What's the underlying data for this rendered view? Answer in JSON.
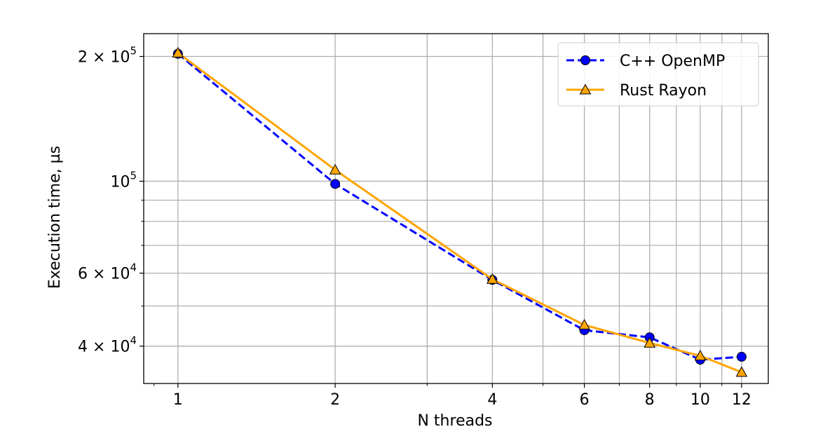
{
  "chart_data": {
    "type": "line",
    "xscale": "log",
    "yscale": "log",
    "xlabel": "N threads",
    "ylabel": "Execution time, µs",
    "xlim": [
      0.86,
      13.5
    ],
    "ylim": [
      32500,
      227000
    ],
    "grid": true,
    "grid_minor": true,
    "legend_position": "top-right",
    "x_ticks": [
      {
        "value": 1,
        "label": "1"
      },
      {
        "value": 2,
        "label": "2"
      },
      {
        "value": 4,
        "label": "4"
      },
      {
        "value": 6,
        "label": "6"
      },
      {
        "value": 8,
        "label": "8"
      },
      {
        "value": 10,
        "label": "10"
      },
      {
        "value": 12,
        "label": "12"
      }
    ],
    "x_minor_ticks": [
      3,
      5,
      7,
      9,
      11
    ],
    "y_ticks": [
      {
        "value": 200000,
        "base": "2 × 10",
        "exp": "5"
      },
      {
        "value": 100000,
        "base": "10",
        "exp": "5"
      },
      {
        "value": 60000,
        "base": "6 × 10",
        "exp": "4"
      },
      {
        "value": 40000,
        "base": "4 × 10",
        "exp": "4"
      }
    ],
    "y_minor_ticks": [
      90000,
      80000,
      70000,
      50000
    ],
    "x": [
      1,
      2,
      4,
      6,
      8,
      10,
      12
    ],
    "series": [
      {
        "name": "C++ OpenMP",
        "values": [
          203000,
          98500,
          57800,
          43700,
          42000,
          37100,
          37700
        ],
        "color": "#0000ff",
        "line_style": "dashed",
        "marker": "circle"
      },
      {
        "name": "Rust Rayon",
        "values": [
          204000,
          106500,
          58000,
          45000,
          40700,
          37900,
          34600
        ],
        "color": "#ffa500",
        "line_style": "solid",
        "marker": "triangle"
      }
    ]
  }
}
